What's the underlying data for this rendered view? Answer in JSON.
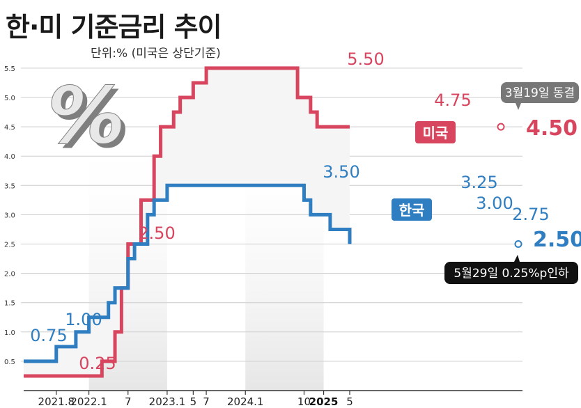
{
  "title": "한·미 기준금리 추이",
  "subtitle": "단위:% (미국은 상단기준)",
  "percent_symbol": "%",
  "colors": {
    "us": "#d8455f",
    "kr": "#2f7ec1",
    "shade": "#e6e6e6",
    "grid": "#cccccc",
    "fill_between": "#f5f5f5"
  },
  "chart_data": {
    "type": "line",
    "step": true,
    "title": "한·미 기준금리 추이",
    "subtitle": "단위:% (미국은 상단기준)",
    "ylim": [
      0,
      5.6
    ],
    "yticks": [
      "0.5",
      "1.0",
      "1.5",
      "2.0",
      "2.5",
      "3.0",
      "3.5",
      "4.0",
      "4.5",
      "5.0",
      "5.5"
    ],
    "grid": true,
    "x_tick_labels": [
      {
        "label": "2021.8",
        "date": "2021-08"
      },
      {
        "label": "2022.1",
        "date": "2022-01"
      },
      {
        "label": "7",
        "date": "2022-07"
      },
      {
        "label": "2023.1",
        "date": "2023-01"
      },
      {
        "label": "5",
        "date": "2023-05"
      },
      {
        "label": "7",
        "date": "2023-07"
      },
      {
        "label": "2024.1",
        "date": "2024-01"
      },
      {
        "label": "10",
        "date": "2024-10"
      },
      {
        "label": "2025",
        "date": "2025-01",
        "bold": true
      },
      {
        "label": "5",
        "date": "2025-05"
      }
    ],
    "series": [
      {
        "name": "미국",
        "steps": [
          {
            "date": "2021-03",
            "value": 0.25
          },
          {
            "date": "2022-03",
            "value": 0.5
          },
          {
            "date": "2022-05",
            "value": 1.0
          },
          {
            "date": "2022-06",
            "value": 1.75
          },
          {
            "date": "2022-07",
            "value": 2.5
          },
          {
            "date": "2022-09",
            "value": 3.25
          },
          {
            "date": "2022-11",
            "value": 4.0
          },
          {
            "date": "2022-12",
            "value": 4.5
          },
          {
            "date": "2023-02",
            "value": 4.75
          },
          {
            "date": "2023-03",
            "value": 5.0
          },
          {
            "date": "2023-05",
            "value": 5.25
          },
          {
            "date": "2023-07",
            "value": 5.5
          },
          {
            "date": "2024-09",
            "value": 5.0
          },
          {
            "date": "2024-11",
            "value": 4.75
          },
          {
            "date": "2024-12",
            "value": 4.5
          }
        ],
        "end": "2025-05",
        "end_label": "4.50",
        "labels": [
          "0.25",
          "2.50",
          "5.50",
          "4.75"
        ],
        "annotation": "3월19일 동결"
      },
      {
        "name": "한국",
        "steps": [
          {
            "date": "2021-03",
            "value": 0.5
          },
          {
            "date": "2021-08",
            "value": 0.75
          },
          {
            "date": "2021-11",
            "value": 1.0
          },
          {
            "date": "2022-01",
            "value": 1.25
          },
          {
            "date": "2022-04",
            "value": 1.5
          },
          {
            "date": "2022-05",
            "value": 1.75
          },
          {
            "date": "2022-07",
            "value": 2.25
          },
          {
            "date": "2022-08",
            "value": 2.5
          },
          {
            "date": "2022-10",
            "value": 3.0
          },
          {
            "date": "2022-11",
            "value": 3.25
          },
          {
            "date": "2023-01",
            "value": 3.5
          },
          {
            "date": "2024-10",
            "value": 3.25
          },
          {
            "date": "2024-11",
            "value": 3.0
          },
          {
            "date": "2025-02",
            "value": 2.75
          },
          {
            "date": "2025-05",
            "value": 2.5
          }
        ],
        "end": "2025-05",
        "end_label": "2.50",
        "labels": [
          "0.75",
          "1.00",
          "3.50",
          "3.25",
          "3.00",
          "2.75"
        ],
        "annotation": "5월29일 0.25%p인하"
      }
    ],
    "shaded_periods": [
      {
        "from": "2022-01",
        "to": "2023-01"
      },
      {
        "from": "2024-01",
        "to": "2025-01"
      }
    ]
  }
}
